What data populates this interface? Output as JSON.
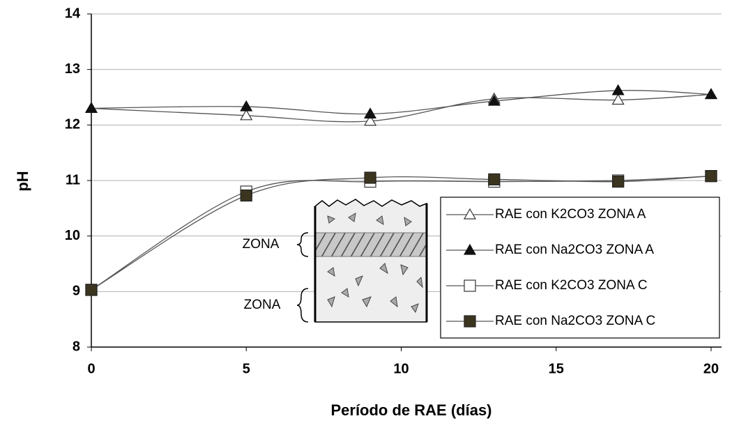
{
  "chart_data": {
    "type": "line",
    "x_label": "Período de RAE (días)",
    "y_label": "pH",
    "x": [
      0,
      5,
      9,
      13,
      17,
      20
    ],
    "xlim": [
      0,
      20
    ],
    "xticks": [
      0,
      5,
      10,
      15,
      20
    ],
    "ylim": [
      8,
      14
    ],
    "yticks": [
      8,
      9,
      10,
      11,
      12,
      13,
      14
    ],
    "grid": true,
    "smooth": true,
    "legend_position": "lower right",
    "series": [
      {
        "name": "RAE con K2CO3 ZONA A",
        "color": "#333333",
        "marker": "triangle",
        "marker_fill": "#ffffff",
        "values": [
          12.3,
          12.17,
          12.07,
          12.47,
          12.45,
          12.55
        ]
      },
      {
        "name": "RAE con Na2CO3 ZONA A",
        "color": "#111111",
        "marker": "triangle",
        "marker_fill": "#111111",
        "values": [
          12.3,
          12.33,
          12.2,
          12.43,
          12.62,
          12.55
        ]
      },
      {
        "name": "RAE con K2CO3 ZONA C",
        "color": "#333333",
        "marker": "square",
        "marker_fill": "#ffffff",
        "values": [
          9.03,
          10.8,
          10.98,
          10.98,
          11.0,
          11.08
        ]
      },
      {
        "name": "RAE con Na2CO3 ZONA C",
        "color": "#222222",
        "marker": "square",
        "marker_fill": "#3b3520",
        "values": [
          9.03,
          10.73,
          11.05,
          11.02,
          10.98,
          11.08
        ]
      }
    ],
    "annotations": [
      "ZONA",
      "ZONA"
    ]
  }
}
